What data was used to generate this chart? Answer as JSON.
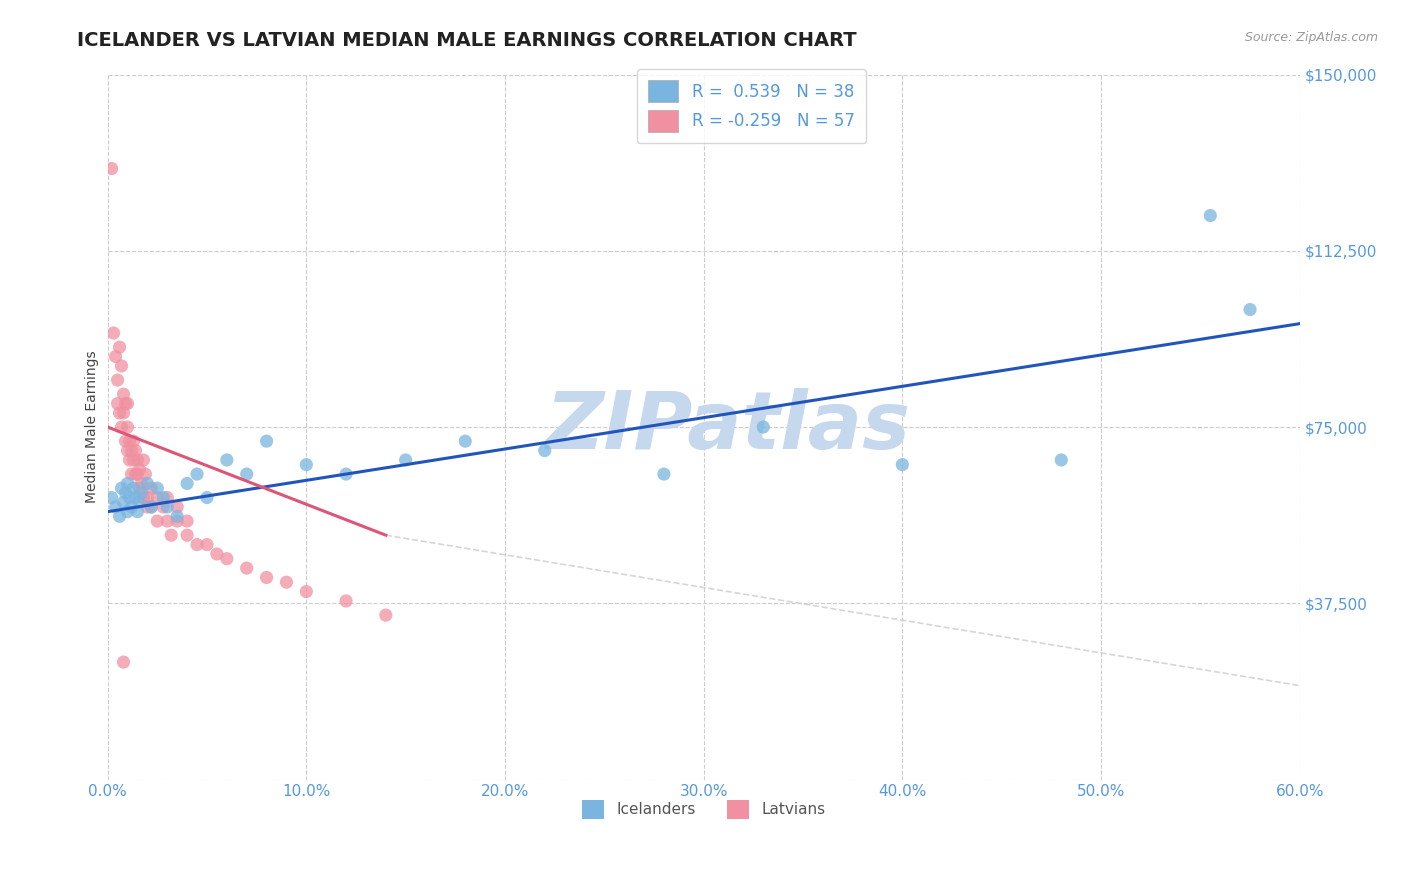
{
  "title": "ICELANDER VS LATVIAN MEDIAN MALE EARNINGS CORRELATION CHART",
  "source": "Source: ZipAtlas.com",
  "ylabel": "Median Male Earnings",
  "xlim": [
    0.0,
    0.6
  ],
  "ylim": [
    0,
    150000
  ],
  "yticks": [
    0,
    37500,
    75000,
    112500,
    150000
  ],
  "ytick_labels": [
    "",
    "$37,500",
    "$75,000",
    "$112,500",
    "$150,000"
  ],
  "xticks": [
    0.0,
    0.1,
    0.2,
    0.3,
    0.4,
    0.5,
    0.6
  ],
  "xtick_labels": [
    "0.0%",
    "10.0%",
    "20.0%",
    "30.0%",
    "40.0%",
    "50.0%",
    "60.0%"
  ],
  "icelanders_x": [
    0.002,
    0.004,
    0.006,
    0.007,
    0.008,
    0.009,
    0.01,
    0.01,
    0.011,
    0.012,
    0.013,
    0.014,
    0.015,
    0.016,
    0.017,
    0.02,
    0.022,
    0.025,
    0.028,
    0.03,
    0.035,
    0.04,
    0.045,
    0.05,
    0.06,
    0.07,
    0.08,
    0.1,
    0.12,
    0.15,
    0.18,
    0.22,
    0.28,
    0.33,
    0.4,
    0.48,
    0.555,
    0.575
  ],
  "icelanders_y": [
    60000,
    58000,
    56000,
    62000,
    59000,
    61000,
    57000,
    63000,
    60000,
    58000,
    62000,
    60000,
    57000,
    59000,
    61000,
    63000,
    58000,
    62000,
    60000,
    58000,
    56000,
    63000,
    65000,
    60000,
    68000,
    65000,
    72000,
    67000,
    65000,
    68000,
    72000,
    70000,
    65000,
    75000,
    67000,
    68000,
    120000,
    100000
  ],
  "latvians_x": [
    0.002,
    0.003,
    0.004,
    0.005,
    0.005,
    0.006,
    0.006,
    0.007,
    0.007,
    0.008,
    0.008,
    0.009,
    0.009,
    0.01,
    0.01,
    0.01,
    0.011,
    0.011,
    0.012,
    0.012,
    0.013,
    0.013,
    0.014,
    0.014,
    0.015,
    0.015,
    0.016,
    0.016,
    0.017,
    0.018,
    0.018,
    0.019,
    0.02,
    0.02,
    0.022,
    0.022,
    0.025,
    0.025,
    0.028,
    0.03,
    0.03,
    0.032,
    0.035,
    0.035,
    0.04,
    0.04,
    0.045,
    0.05,
    0.055,
    0.06,
    0.07,
    0.08,
    0.09,
    0.1,
    0.12,
    0.14,
    0.008
  ],
  "latvians_y": [
    130000,
    95000,
    90000,
    85000,
    80000,
    92000,
    78000,
    88000,
    75000,
    82000,
    78000,
    80000,
    72000,
    75000,
    70000,
    80000,
    72000,
    68000,
    70000,
    65000,
    68000,
    72000,
    65000,
    70000,
    65000,
    68000,
    62000,
    66000,
    63000,
    68000,
    60000,
    65000,
    60000,
    58000,
    62000,
    58000,
    60000,
    55000,
    58000,
    55000,
    60000,
    52000,
    55000,
    58000,
    52000,
    55000,
    50000,
    50000,
    48000,
    47000,
    45000,
    43000,
    42000,
    40000,
    38000,
    35000,
    25000
  ],
  "ice_color": "#7ab5e0",
  "lat_color": "#f090a0",
  "trend_ice_x0": 0.0,
  "trend_ice_x1": 0.6,
  "trend_ice_y0": 57000,
  "trend_ice_y1": 97000,
  "trend_ice_color": "#2255bb",
  "trend_lat_x0": 0.0,
  "trend_lat_x1": 0.14,
  "trend_lat_y0": 75000,
  "trend_lat_y1": 52000,
  "trend_lat_color": "#dd5577",
  "trend_lat_dash_x0": 0.14,
  "trend_lat_dash_x1": 0.6,
  "trend_lat_dash_y0": 52000,
  "trend_lat_dash_y1": 20000,
  "diag_dash_color": "#cccccc",
  "tick_color": "#5599dd",
  "watermark": "ZIPatlas",
  "watermark_color": "#c5d8ee",
  "background": "#ffffff",
  "grid_color": "#cccccc",
  "title_fontsize": 14,
  "source_fontsize": 9,
  "ylabel_fontsize": 10,
  "tick_fontsize": 11
}
